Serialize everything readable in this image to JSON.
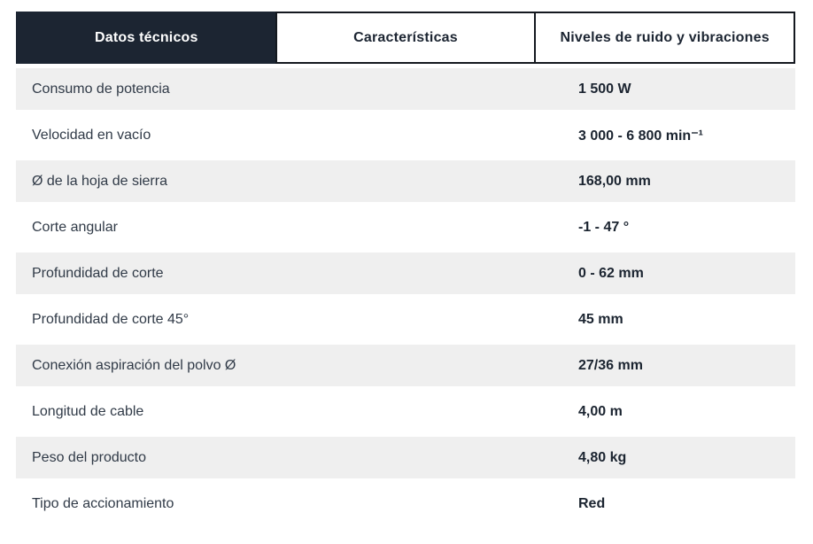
{
  "tabs": [
    {
      "id": "datos-tecnicos",
      "label": "Datos técnicos",
      "active": true
    },
    {
      "id": "caracteristicas",
      "label": "Características",
      "active": false
    },
    {
      "id": "niveles-ruido-vibraciones",
      "label": "Niveles de ruido y vibraciones",
      "active": false
    }
  ],
  "specs": {
    "rows": [
      {
        "label": "Consumo de potencia",
        "value": "1 500 W"
      },
      {
        "label": "Velocidad en vacío",
        "value": "3 000 - 6 800 min⁻¹"
      },
      {
        "label": "Ø de la hoja de sierra",
        "value": "168,00 mm"
      },
      {
        "label": "Corte angular",
        "value": "-1 - 47 °"
      },
      {
        "label": "Profundidad de corte",
        "value": "0 - 62 mm"
      },
      {
        "label": "Profundidad de corte 45°",
        "value": "45 mm"
      },
      {
        "label": "Conexión aspiración del polvo Ø",
        "value": "27/36 mm"
      },
      {
        "label": "Longitud de cable",
        "value": "4,00 m"
      },
      {
        "label": "Peso del producto",
        "value": "4,80 kg"
      },
      {
        "label": "Tipo de accionamiento",
        "value": "Red"
      }
    ]
  },
  "colors": {
    "active_tab_bg": "#1c2532",
    "tab_border": "#14181f",
    "row_stripe": "#efefef",
    "label_text": "#303a47",
    "value_text": "#1b2430"
  }
}
